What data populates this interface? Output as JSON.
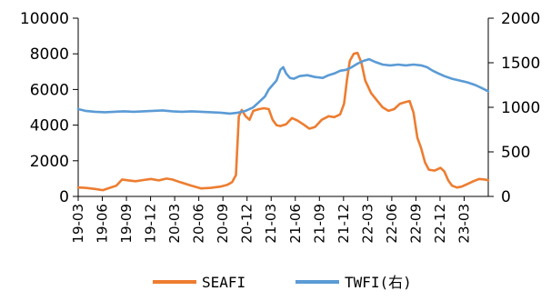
{
  "chart_data": {
    "type": "line",
    "title": "",
    "xlabel": "",
    "ylabel": "",
    "x_tick_labels": [
      "19-03",
      "19-06",
      "19-09",
      "19-12",
      "20-03",
      "20-06",
      "20-09",
      "20-12",
      "21-03",
      "21-06",
      "21-09",
      "21-12",
      "22-03",
      "22-06",
      "22-09",
      "22-12",
      "23-03"
    ],
    "x_start": 2019.125,
    "x_end": 2023.375,
    "y_left": {
      "range": [
        0,
        10000
      ],
      "ticks": [
        0,
        2000,
        4000,
        6000,
        8000,
        10000
      ],
      "tick_labels": [
        "0",
        "2000",
        "4000",
        "6000",
        "8000",
        "10000"
      ]
    },
    "y_right": {
      "range": [
        0,
        2000
      ],
      "ticks": [
        0,
        500,
        1000,
        1500,
        2000
      ],
      "tick_labels": [
        "0",
        "500",
        "1000",
        "1500",
        "2000"
      ]
    },
    "legend_position": "bottom",
    "grid": false,
    "series": [
      {
        "name": "SEAFI",
        "axis": "left",
        "color": "#ED7D31",
        "legend_label": "SEAFI",
        "points": [
          [
            2019.125,
            500
          ],
          [
            2019.2,
            480
          ],
          [
            2019.3,
            420
          ],
          [
            2019.38,
            350
          ],
          [
            2019.45,
            480
          ],
          [
            2019.52,
            600
          ],
          [
            2019.58,
            950
          ],
          [
            2019.65,
            900
          ],
          [
            2019.72,
            850
          ],
          [
            2019.8,
            920
          ],
          [
            2019.88,
            980
          ],
          [
            2019.96,
            900
          ],
          [
            2020.04,
            1000
          ],
          [
            2020.1,
            950
          ],
          [
            2020.18,
            800
          ],
          [
            2020.3,
            600
          ],
          [
            2020.4,
            450
          ],
          [
            2020.5,
            480
          ],
          [
            2020.6,
            550
          ],
          [
            2020.67,
            650
          ],
          [
            2020.72,
            800
          ],
          [
            2020.76,
            1200
          ],
          [
            2020.79,
            4500
          ],
          [
            2020.82,
            4850
          ],
          [
            2020.86,
            4500
          ],
          [
            2020.9,
            4300
          ],
          [
            2020.94,
            4800
          ],
          [
            2021.0,
            4900
          ],
          [
            2021.05,
            4950
          ],
          [
            2021.1,
            4900
          ],
          [
            2021.14,
            4300
          ],
          [
            2021.18,
            4000
          ],
          [
            2021.22,
            3950
          ],
          [
            2021.28,
            4050
          ],
          [
            2021.34,
            4400
          ],
          [
            2021.4,
            4250
          ],
          [
            2021.47,
            4000
          ],
          [
            2021.52,
            3800
          ],
          [
            2021.58,
            3900
          ],
          [
            2021.65,
            4300
          ],
          [
            2021.72,
            4500
          ],
          [
            2021.78,
            4450
          ],
          [
            2021.84,
            4600
          ],
          [
            2021.88,
            5200
          ],
          [
            2021.91,
            6500
          ],
          [
            2021.94,
            7600
          ],
          [
            2021.98,
            8000
          ],
          [
            2022.02,
            8050
          ],
          [
            2022.06,
            7500
          ],
          [
            2022.1,
            6500
          ],
          [
            2022.16,
            5800
          ],
          [
            2022.22,
            5400
          ],
          [
            2022.28,
            5000
          ],
          [
            2022.34,
            4800
          ],
          [
            2022.4,
            4900
          ],
          [
            2022.46,
            5200
          ],
          [
            2022.52,
            5300
          ],
          [
            2022.56,
            5350
          ],
          [
            2022.6,
            4700
          ],
          [
            2022.64,
            3300
          ],
          [
            2022.68,
            2700
          ],
          [
            2022.72,
            1900
          ],
          [
            2022.76,
            1500
          ],
          [
            2022.82,
            1450
          ],
          [
            2022.88,
            1600
          ],
          [
            2022.92,
            1400
          ],
          [
            2022.96,
            900
          ],
          [
            2023.0,
            600
          ],
          [
            2023.05,
            500
          ],
          [
            2023.1,
            550
          ],
          [
            2023.16,
            700
          ],
          [
            2023.22,
            850
          ],
          [
            2023.28,
            980
          ],
          [
            2023.34,
            950
          ],
          [
            2023.375,
            900
          ]
        ]
      },
      {
        "name": "TWFI(右)",
        "axis": "right",
        "color": "#5B9BD5",
        "legend_label": "TWFI(右)",
        "points": [
          [
            2019.125,
            980
          ],
          [
            2019.2,
            960
          ],
          [
            2019.3,
            950
          ],
          [
            2019.4,
            945
          ],
          [
            2019.5,
            950
          ],
          [
            2019.6,
            955
          ],
          [
            2019.7,
            950
          ],
          [
            2019.8,
            955
          ],
          [
            2019.9,
            960
          ],
          [
            2020.0,
            965
          ],
          [
            2020.1,
            955
          ],
          [
            2020.2,
            950
          ],
          [
            2020.3,
            955
          ],
          [
            2020.4,
            950
          ],
          [
            2020.5,
            945
          ],
          [
            2020.6,
            940
          ],
          [
            2020.7,
            930
          ],
          [
            2020.78,
            940
          ],
          [
            2020.86,
            960
          ],
          [
            2020.94,
            1000
          ],
          [
            2021.0,
            1060
          ],
          [
            2021.06,
            1120
          ],
          [
            2021.1,
            1200
          ],
          [
            2021.14,
            1250
          ],
          [
            2021.18,
            1300
          ],
          [
            2021.22,
            1420
          ],
          [
            2021.25,
            1450
          ],
          [
            2021.28,
            1380
          ],
          [
            2021.32,
            1330
          ],
          [
            2021.36,
            1320
          ],
          [
            2021.42,
            1350
          ],
          [
            2021.5,
            1360
          ],
          [
            2021.58,
            1340
          ],
          [
            2021.66,
            1330
          ],
          [
            2021.72,
            1360
          ],
          [
            2021.78,
            1380
          ],
          [
            2021.84,
            1410
          ],
          [
            2021.9,
            1420
          ],
          [
            2021.96,
            1450
          ],
          [
            2022.02,
            1490
          ],
          [
            2022.08,
            1520
          ],
          [
            2022.14,
            1540
          ],
          [
            2022.2,
            1510
          ],
          [
            2022.28,
            1480
          ],
          [
            2022.36,
            1470
          ],
          [
            2022.44,
            1480
          ],
          [
            2022.52,
            1470
          ],
          [
            2022.6,
            1480
          ],
          [
            2022.68,
            1470
          ],
          [
            2022.74,
            1450
          ],
          [
            2022.8,
            1410
          ],
          [
            2022.86,
            1380
          ],
          [
            2022.92,
            1350
          ],
          [
            2023.0,
            1320
          ],
          [
            2023.08,
            1300
          ],
          [
            2023.16,
            1280
          ],
          [
            2023.24,
            1250
          ],
          [
            2023.3,
            1220
          ],
          [
            2023.375,
            1180
          ]
        ]
      }
    ]
  }
}
